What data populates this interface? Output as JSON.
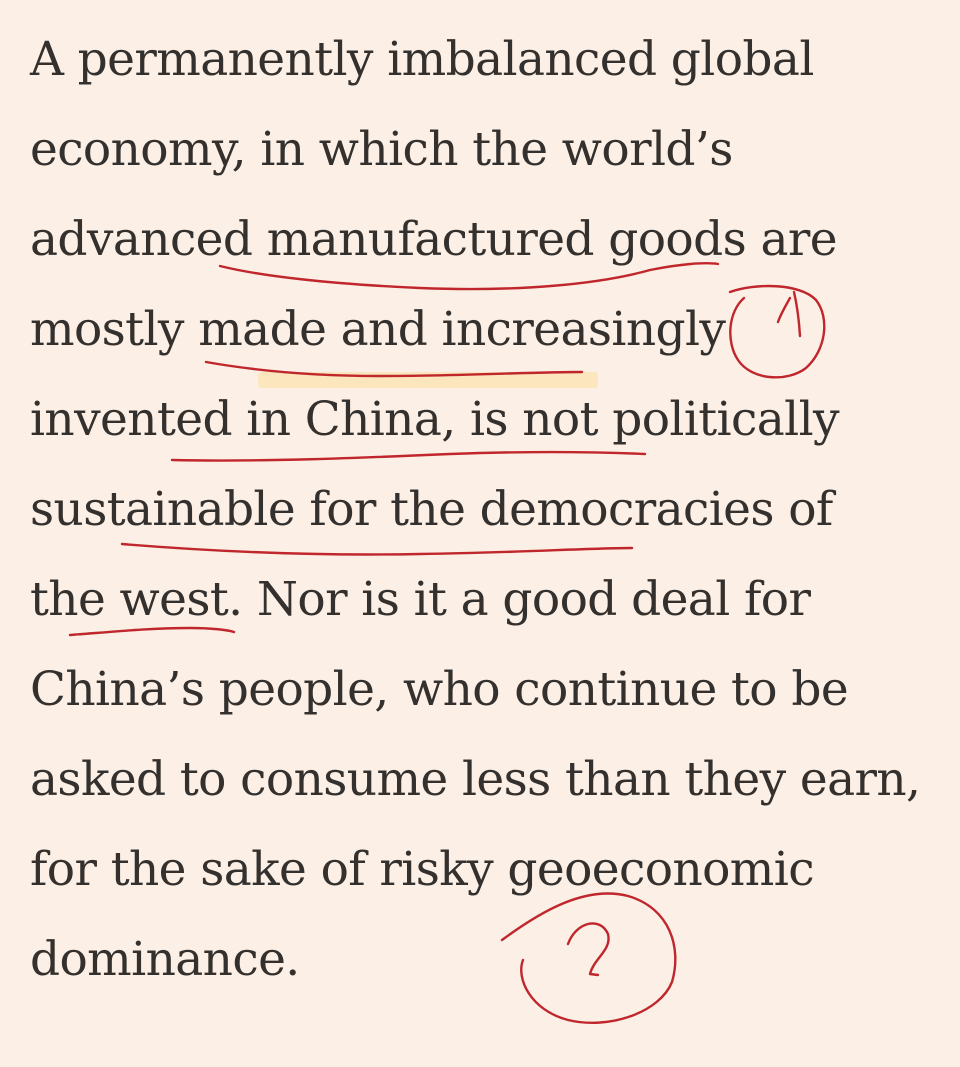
{
  "article": {
    "paragraph_lines": [
      "A permanently imbalanced global",
      "economy, in which the world’s",
      "advanced manufactured goods are",
      "mostly made and increasingly",
      "invented in China, is not politically",
      "sustainable for the democracies of",
      "the west. Nor is it a good deal for",
      "China’s people, who continue to be",
      "asked to consume less than they earn,",
      "for the sake of risky geoeconomic",
      "dominance."
    ]
  },
  "colors": {
    "background": "#fcefe5",
    "text": "#33302e",
    "annotation_ink": "#c0272d",
    "highlight": "#fbe3b3"
  }
}
